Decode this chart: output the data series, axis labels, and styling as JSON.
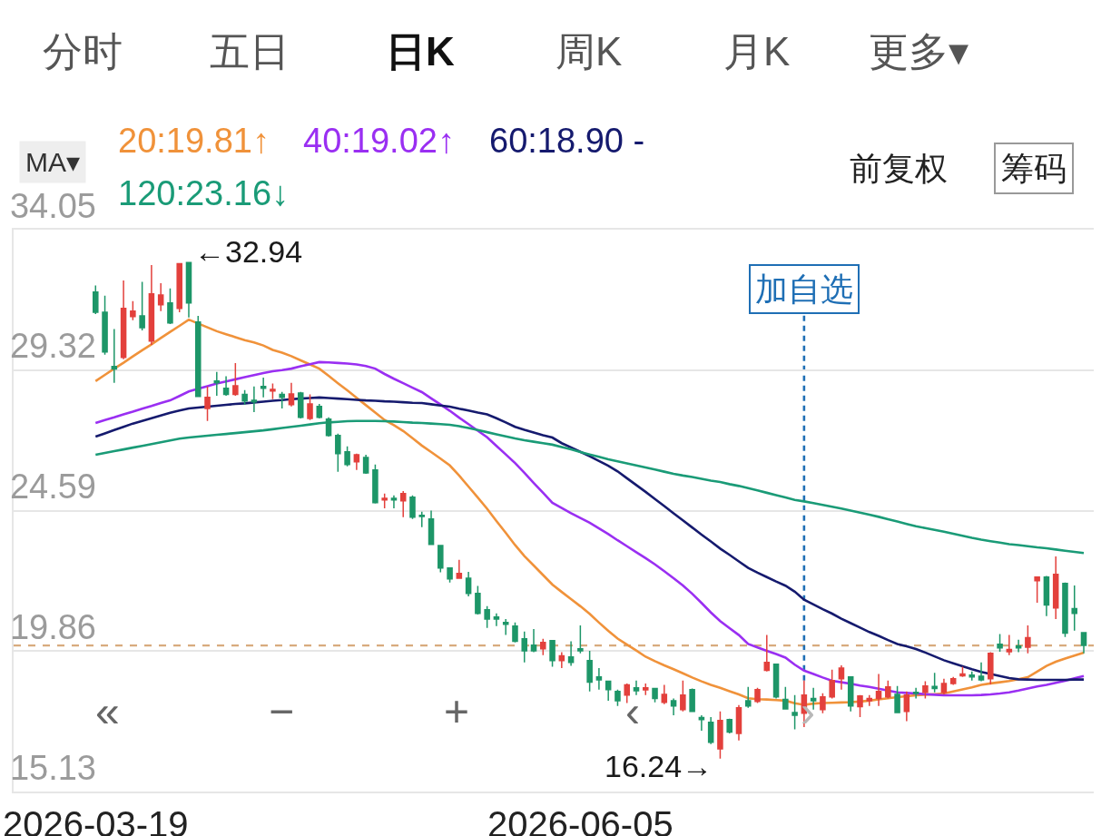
{
  "chart_data": {
    "type": "candlestick",
    "categories": [
      "2026-03-19",
      null,
      null,
      null,
      null,
      null,
      null,
      null,
      null,
      null,
      null,
      null,
      null,
      null,
      null,
      null,
      null,
      null,
      null,
      null,
      null,
      null,
      null,
      null,
      null,
      null,
      null,
      null,
      null,
      null,
      null,
      null,
      null,
      null,
      null,
      null,
      null,
      null,
      null,
      null,
      null,
      null,
      null,
      null,
      null,
      null,
      null,
      null,
      null,
      null,
      null,
      null,
      "2026-06-05",
      null,
      null,
      null,
      null,
      null,
      null,
      null,
      null,
      null,
      null,
      null,
      null,
      null,
      null,
      null,
      null,
      null,
      null,
      null,
      null,
      null,
      null,
      null,
      null,
      null,
      null,
      null,
      null,
      null,
      null,
      null,
      null,
      null,
      null,
      null,
      null,
      null,
      null,
      null,
      null,
      null,
      null,
      null,
      null,
      null,
      null,
      null,
      null,
      null,
      null,
      null,
      null,
      null,
      null
    ],
    "ohlc": [
      [
        31.95,
        32.17,
        31.21,
        31.27
      ],
      [
        31.27,
        31.83,
        29.84,
        29.93
      ],
      [
        29.44,
        30.7,
        28.89,
        29.36
      ],
      [
        29.75,
        32.34,
        29.69,
        31.4
      ],
      [
        31.12,
        31.64,
        31.0,
        31.31
      ],
      [
        31.15,
        32.29,
        30.66,
        30.75
      ],
      [
        30.3,
        32.86,
        30.17,
        31.89
      ],
      [
        31.52,
        32.25,
        31.31,
        31.85
      ],
      [
        31.58,
        32.07,
        30.87,
        30.91
      ],
      [
        31.4,
        32.9,
        31.27,
        32.9
      ],
      [
        32.94,
        32.94,
        31.09,
        31.58
      ],
      [
        30.94,
        31.15,
        28.43,
        28.43
      ],
      [
        28.03,
        28.77,
        27.61,
        28.4
      ],
      [
        28.95,
        29.26,
        28.46,
        28.89
      ],
      [
        28.71,
        29.11,
        28.46,
        28.5
      ],
      [
        28.5,
        29.56,
        28.46,
        28.79
      ],
      [
        28.5,
        28.65,
        28.16,
        28.28
      ],
      [
        28.3,
        28.77,
        27.91,
        28.25
      ],
      [
        28.77,
        29.07,
        28.4,
        28.71
      ],
      [
        28.62,
        28.87,
        28.34,
        28.67
      ],
      [
        28.5,
        28.59,
        28.03,
        28.4
      ],
      [
        28.16,
        28.89,
        28.1,
        28.52
      ],
      [
        28.55,
        28.59,
        27.69,
        27.73
      ],
      [
        27.69,
        28.5,
        27.64,
        28.18
      ],
      [
        28.1,
        28.18,
        27.69,
        27.73
      ],
      [
        27.67,
        27.73,
        27.08,
        27.12
      ],
      [
        27.12,
        27.18,
        25.9,
        26.51
      ],
      [
        26.57,
        26.75,
        26.08,
        26.14
      ],
      [
        26.23,
        26.51,
        25.96,
        26.47
      ],
      [
        26.38,
        26.47,
        25.83,
        25.86
      ],
      [
        25.96,
        26.14,
        24.83,
        24.86
      ],
      [
        24.95,
        25.16,
        24.67,
        25.0
      ],
      [
        25.0,
        25.1,
        24.67,
        24.95
      ],
      [
        24.92,
        25.25,
        24.37,
        25.16
      ],
      [
        25.04,
        25.1,
        24.31,
        24.37
      ],
      [
        24.43,
        24.55,
        24.03,
        24.39
      ],
      [
        24.31,
        24.59,
        23.45,
        23.45
      ],
      [
        23.41,
        23.41,
        22.51,
        22.66
      ],
      [
        22.66,
        22.68,
        22.17,
        22.29
      ],
      [
        22.31,
        22.93,
        22.29,
        22.47
      ],
      [
        22.31,
        22.53,
        21.7,
        21.8
      ],
      [
        21.8,
        22.05,
        21.09,
        21.13
      ],
      [
        21.25,
        21.37,
        20.64,
        20.94
      ],
      [
        21.01,
        21.13,
        20.7,
        20.94
      ],
      [
        20.82,
        20.94,
        20.4,
        20.76
      ],
      [
        20.7,
        20.82,
        20.15,
        20.19
      ],
      [
        20.27,
        20.52,
        19.48,
        19.87
      ],
      [
        20.06,
        20.6,
        19.82,
        19.87
      ],
      [
        19.94,
        20.27,
        19.72,
        20.15
      ],
      [
        20.21,
        20.21,
        19.33,
        19.54
      ],
      [
        19.54,
        19.82,
        19.29,
        19.7
      ],
      [
        19.66,
        20.19,
        19.36,
        19.48
      ],
      [
        19.94,
        20.72,
        19.78,
        19.87
      ],
      [
        19.54,
        19.87,
        18.5,
        18.81
      ],
      [
        18.99,
        19.29,
        18.56,
        18.89
      ],
      [
        18.84,
        18.87,
        18.19,
        18.56
      ],
      [
        18.5,
        18.56,
        18.01,
        18.19
      ],
      [
        18.38,
        18.77,
        18.11,
        18.72
      ],
      [
        18.62,
        18.87,
        18.38,
        18.52
      ],
      [
        18.55,
        18.77,
        18.38,
        18.62
      ],
      [
        18.6,
        18.62,
        18.13,
        18.26
      ],
      [
        18.13,
        18.72,
        18.07,
        18.4
      ],
      [
        18.19,
        18.26,
        17.7,
        18.01
      ],
      [
        17.89,
        18.87,
        17.83,
        18.38
      ],
      [
        18.56,
        18.6,
        17.83,
        17.83
      ],
      [
        17.62,
        17.7,
        17.18,
        17.55
      ],
      [
        17.46,
        17.64,
        16.73,
        16.79
      ],
      [
        16.57,
        17.83,
        16.24,
        17.52
      ],
      [
        17.55,
        17.58,
        17.09,
        17.13
      ],
      [
        17.09,
        18.04,
        16.85,
        17.95
      ],
      [
        18.19,
        18.65,
        17.95,
        18.01
      ],
      [
        18.16,
        18.62,
        18.11,
        18.56
      ],
      [
        19.21,
        20.4,
        19.17,
        19.48
      ],
      [
        19.42,
        19.42,
        18.26,
        18.32
      ],
      [
        18.23,
        18.65,
        17.89,
        17.91
      ],
      [
        17.79,
        18.38,
        17.22,
        17.7
      ],
      [
        17.77,
        18.87,
        17.3,
        18.38
      ],
      [
        18.26,
        18.62,
        17.89,
        18.19
      ],
      [
        17.89,
        18.44,
        17.77,
        18.32
      ],
      [
        18.32,
        19.23,
        18.26,
        18.87
      ],
      [
        18.93,
        19.38,
        18.56,
        19.29
      ],
      [
        18.99,
        19.01,
        17.83,
        18.01
      ],
      [
        17.99,
        18.38,
        17.64,
        18.35
      ],
      [
        18.19,
        18.38,
        18.01,
        18.26
      ],
      [
        18.26,
        19.09,
        18.01,
        18.5
      ],
      [
        18.32,
        18.87,
        18.26,
        18.65
      ],
      [
        18.4,
        18.68,
        17.77,
        17.79
      ],
      [
        17.83,
        18.5,
        17.5,
        18.38
      ],
      [
        18.47,
        18.62,
        18.26,
        18.43
      ],
      [
        18.47,
        18.84,
        18.26,
        18.68
      ],
      [
        18.67,
        19.13,
        18.47,
        18.6
      ],
      [
        18.47,
        18.93,
        18.4,
        18.77
      ],
      [
        18.77,
        18.99,
        18.72,
        18.93
      ],
      [
        19.03,
        19.33,
        18.99,
        19.09
      ],
      [
        19.05,
        19.17,
        18.87,
        18.99
      ],
      [
        19.01,
        19.48,
        18.84,
        18.89
      ],
      [
        18.93,
        19.82,
        18.74,
        19.78
      ],
      [
        20.09,
        20.43,
        19.84,
        19.97
      ],
      [
        19.84,
        20.4,
        19.72,
        19.91
      ],
      [
        20.03,
        20.24,
        19.82,
        19.97
      ],
      [
        19.99,
        20.72,
        19.78,
        20.31
      ],
      [
        22.23,
        22.35,
        21.49,
        22.35
      ],
      [
        22.35,
        22.39,
        21.04,
        21.41
      ],
      [
        21.31,
        23.05,
        20.94,
        22.44
      ],
      [
        22.14,
        22.17,
        20.33,
        20.46
      ],
      [
        21.29,
        22.07,
        20.55,
        21.13
      ],
      [
        20.48,
        20.48,
        19.78,
        20.05
      ]
    ],
    "colors": [
      "#1d9668",
      "#1d9668",
      "#1d9668",
      "#e3403c",
      "#e3403c",
      "#1d9668",
      "#e3403c",
      "#e3403c",
      "#1d9668",
      "#e3403c",
      "#1d9668",
      "#1d9668",
      "#e3403c",
      "#1d9668",
      "#1d9668",
      "#e3403c",
      "#1d9668",
      "#1d9668",
      "#1d9668",
      "#e3403c",
      "#1d9668",
      "#e3403c",
      "#1d9668",
      "#e3403c",
      "#1d9668",
      "#1d9668",
      "#1d9668",
      "#1d9668",
      "#e3403c",
      "#1d9668",
      "#1d9668",
      "#e3403c",
      "#1d9668",
      "#e3403c",
      "#1d9668",
      "#1d9668",
      "#1d9668",
      "#1d9668",
      "#1d9668",
      "#e3403c",
      "#1d9668",
      "#1d9668",
      "#1d9668",
      "#1d9668",
      "#1d9668",
      "#1d9668",
      "#1d9668",
      "#1d9668",
      "#e3403c",
      "#1d9668",
      "#e3403c",
      "#1d9668",
      "#1d9668",
      "#1d9668",
      "#1d9668",
      "#1d9668",
      "#1d9668",
      "#e3403c",
      "#1d9668",
      "#e3403c",
      "#1d9668",
      "#e3403c",
      "#1d9668",
      "#e3403c",
      "#1d9668",
      "#1d9668",
      "#1d9668",
      "#e3403c",
      "#1d9668",
      "#e3403c",
      "#1d9668",
      "#e3403c",
      "#e3403c",
      "#1d9668",
      "#1d9668",
      "#1d9668",
      "#e3403c",
      "#1d9668",
      "#e3403c",
      "#e3403c",
      "#e3403c",
      "#1d9668",
      "#e3403c",
      "#e3403c",
      "#e3403c",
      "#e3403c",
      "#1d9668",
      "#e3403c",
      "#1d9668",
      "#e3403c",
      "#1d9668",
      "#e3403c",
      "#e3403c",
      "#e3403c",
      "#1d9668",
      "#1d9668",
      "#e3403c",
      "#1d9668",
      "#e3403c",
      "#1d9668",
      "#e3403c",
      "#e3403c",
      "#1d9668",
      "#e3403c",
      "#1d9668",
      "#1d9668",
      "#1d9668"
    ],
    "series": [
      {
        "type": "line",
        "name": "20:19.81↑",
        "color": "#f0923a",
        "values": [
          28.95,
          29.16,
          29.37,
          29.57,
          29.78,
          29.99,
          30.19,
          30.4,
          30.61,
          30.81,
          31.02,
          30.89,
          30.76,
          30.63,
          30.53,
          30.43,
          30.33,
          30.25,
          30.15,
          30.0,
          29.91,
          29.79,
          29.65,
          29.51,
          29.37,
          29.13,
          28.88,
          28.64,
          28.39,
          28.14,
          27.89,
          27.64,
          27.47,
          27.27,
          27.03,
          26.78,
          26.56,
          26.34,
          26.11,
          25.77,
          25.4,
          25.03,
          24.65,
          24.24,
          23.84,
          23.43,
          23.06,
          22.74,
          22.42,
          22.1,
          21.85,
          21.61,
          21.37,
          21.11,
          20.82,
          20.54,
          20.28,
          20.08,
          19.88,
          19.67,
          19.52,
          19.38,
          19.25,
          19.11,
          18.97,
          18.84,
          18.72,
          18.62,
          18.51,
          18.4,
          18.27,
          18.24,
          18.23,
          18.21,
          18.19,
          18.1,
          18.05,
          18.09,
          18.11,
          18.12,
          18.13,
          18.14,
          18.16,
          18.19,
          18.23,
          18.27,
          18.31,
          18.34,
          18.37,
          18.39,
          18.41,
          18.43,
          18.5,
          18.57,
          18.64,
          18.72,
          18.77,
          18.81,
          18.85,
          18.91,
          18.98,
          19.17,
          19.36,
          19.5,
          19.61,
          19.71,
          19.81
        ]
      },
      {
        "type": "line",
        "name": "40:19.02↑",
        "color": "#9a2ff2",
        "values": [
          27.54,
          27.64,
          27.73,
          27.83,
          27.92,
          28.02,
          28.11,
          28.21,
          28.3,
          28.45,
          28.6,
          28.69,
          28.78,
          28.87,
          28.94,
          29.01,
          29.08,
          29.15,
          29.22,
          29.28,
          29.32,
          29.37,
          29.45,
          29.52,
          29.59,
          29.58,
          29.56,
          29.54,
          29.51,
          29.46,
          29.37,
          29.19,
          29.03,
          28.88,
          28.73,
          28.58,
          28.37,
          28.16,
          27.95,
          27.72,
          27.5,
          27.28,
          27.06,
          26.77,
          26.48,
          26.19,
          25.86,
          25.52,
          25.19,
          24.85,
          24.68,
          24.5,
          24.34,
          24.18,
          23.99,
          23.8,
          23.59,
          23.39,
          23.19,
          22.99,
          22.78,
          22.55,
          22.31,
          22.07,
          21.79,
          21.48,
          21.16,
          20.87,
          20.63,
          20.4,
          20.1,
          19.98,
          19.87,
          19.76,
          19.64,
          19.4,
          19.2,
          19.09,
          18.97,
          18.86,
          18.81,
          18.76,
          18.7,
          18.65,
          18.59,
          18.53,
          18.47,
          18.45,
          18.43,
          18.41,
          18.39,
          18.37,
          18.37,
          18.37,
          18.37,
          18.38,
          18.4,
          18.43,
          18.47,
          18.53,
          18.6,
          18.67,
          18.72,
          18.79,
          18.86,
          18.94,
          19.02
        ]
      },
      {
        "type": "line",
        "name": "60:18.90 -",
        "color": "#151a6e",
        "values": [
          27.08,
          27.19,
          27.3,
          27.41,
          27.52,
          27.61,
          27.7,
          27.79,
          27.88,
          27.96,
          28.03,
          28.06,
          28.09,
          28.12,
          28.15,
          28.18,
          28.2,
          28.23,
          28.26,
          28.29,
          28.31,
          28.34,
          28.36,
          28.38,
          28.4,
          28.38,
          28.36,
          28.34,
          28.32,
          28.3,
          28.29,
          28.27,
          28.26,
          28.24,
          28.22,
          28.21,
          28.17,
          28.13,
          28.09,
          28.02,
          27.96,
          27.89,
          27.83,
          27.7,
          27.56,
          27.41,
          27.31,
          27.22,
          27.13,
          27.05,
          26.86,
          26.72,
          26.57,
          26.42,
          26.26,
          26.1,
          25.91,
          25.68,
          25.45,
          25.22,
          24.98,
          24.74,
          24.5,
          24.26,
          24.02,
          23.78,
          23.55,
          23.31,
          23.1,
          22.88,
          22.66,
          22.5,
          22.35,
          22.2,
          22.06,
          21.86,
          21.59,
          21.43,
          21.27,
          21.12,
          20.95,
          20.8,
          20.65,
          20.5,
          20.37,
          20.23,
          20.1,
          20.02,
          19.93,
          19.81,
          19.68,
          19.55,
          19.45,
          19.35,
          19.25,
          19.16,
          19.09,
          19.02,
          18.95,
          18.91,
          18.9,
          18.89,
          18.89,
          18.89,
          18.89,
          18.9,
          18.9
        ]
      },
      {
        "type": "line",
        "name": "120:23.16↓",
        "color": "#1a9b77",
        "values": [
          26.47,
          26.53,
          26.59,
          26.65,
          26.71,
          26.77,
          26.83,
          26.89,
          26.95,
          27.01,
          27.05,
          27.08,
          27.11,
          27.14,
          27.17,
          27.2,
          27.23,
          27.26,
          27.29,
          27.33,
          27.37,
          27.41,
          27.45,
          27.49,
          27.53,
          27.56,
          27.58,
          27.6,
          27.61,
          27.61,
          27.61,
          27.6,
          27.59,
          27.57,
          27.55,
          27.54,
          27.52,
          27.5,
          27.48,
          27.43,
          27.37,
          27.3,
          27.23,
          27.16,
          27.09,
          27.02,
          26.96,
          26.91,
          26.86,
          26.81,
          26.73,
          26.65,
          26.56,
          26.48,
          26.4,
          26.32,
          26.25,
          26.18,
          26.11,
          26.04,
          25.97,
          25.9,
          25.83,
          25.77,
          25.72,
          25.66,
          25.6,
          25.55,
          25.48,
          25.42,
          25.35,
          25.27,
          25.19,
          25.11,
          25.03,
          24.95,
          24.9,
          24.84,
          24.78,
          24.72,
          24.66,
          24.59,
          24.52,
          24.45,
          24.38,
          24.3,
          24.22,
          24.14,
          24.06,
          24.0,
          23.94,
          23.88,
          23.81,
          23.74,
          23.67,
          23.61,
          23.56,
          23.51,
          23.46,
          23.43,
          23.39,
          23.35,
          23.32,
          23.28,
          23.24,
          23.2,
          23.16
        ]
      }
    ],
    "ylim": [
      15.13,
      34.05
    ],
    "yticks": [
      15.13,
      19.86,
      24.59,
      29.32,
      34.05
    ],
    "grid": "y",
    "legend": "top left",
    "ref_lines": [
      {
        "axis": "y",
        "value": 20.05,
        "color": "#d8ab7e",
        "line_style": "dashed"
      }
    ],
    "annotations": [
      "分时",
      "五日",
      "日K",
      "周K",
      "月K",
      "更多▾",
      "MA▾",
      "前复权",
      "筹码",
      "«",
      "−",
      "+",
      "‹",
      "›",
      {
        "text": "加自选",
        "y": 18.87
      },
      "←32.94",
      "16.24→"
    ]
  }
}
